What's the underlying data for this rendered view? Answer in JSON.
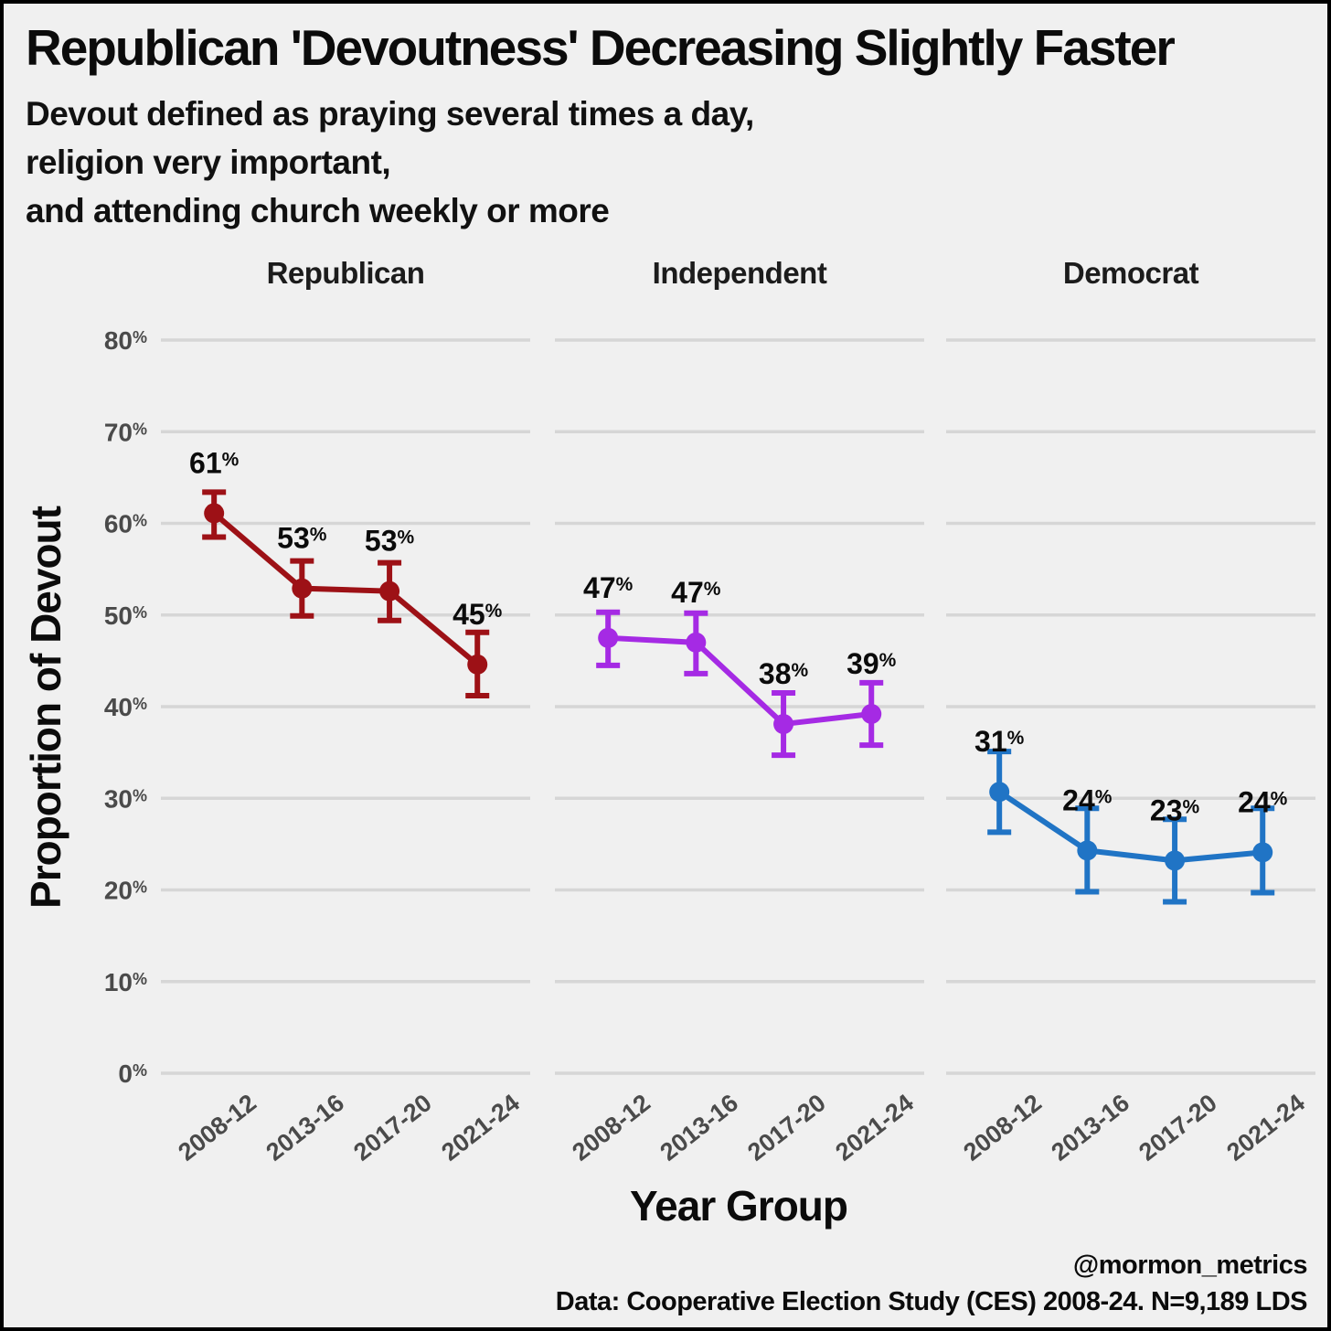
{
  "footer": {
    "handle": "@mormon_metrics",
    "source": "Data: Cooperative Election Study (CES) 2008-24. N=9,189 LDS"
  },
  "colors": {
    "background": "#F0F0F0",
    "border": "#000000",
    "gridline": "#D6D6D6",
    "tick_text": "#4A4A4A",
    "facet_text": "#1C1C1C",
    "label_text": "#0B0B0B",
    "republican": "#9D1116",
    "independent": "#A52AE4",
    "democrat": "#2074C5"
  },
  "chart_data": {
    "type": "line",
    "title": "Republican 'Devoutness' Decreasing Slightly Faster",
    "subtitle": "Devout defined as praying several times a day,\nreligion very important,\nand attending church weekly or more",
    "xlabel": "Year Group",
    "ylabel": "Proportion of Devout",
    "categories": [
      "2008-12",
      "2013-16",
      "2017-20",
      "2021-24"
    ],
    "ylim": [
      0,
      80
    ],
    "ytick_values": [
      0,
      10,
      20,
      30,
      40,
      50,
      60,
      70,
      80
    ],
    "ytick_labels": [
      "0%",
      "10%",
      "20%",
      "30%",
      "40%",
      "50%",
      "60%",
      "70%",
      "80%"
    ],
    "grid": "horizontal",
    "legend": "none",
    "facets": [
      {
        "label": "Republican",
        "color": "#9D1116",
        "values": [
          61.1,
          52.9,
          52.6,
          44.6
        ],
        "point_labels": [
          "61%",
          "53%",
          "53%",
          "45%"
        ],
        "error_low": [
          58.5,
          49.9,
          49.4,
          41.2
        ],
        "error_high": [
          63.4,
          55.9,
          55.7,
          48.1
        ]
      },
      {
        "label": "Independent",
        "color": "#A52AE4",
        "values": [
          47.5,
          47.0,
          38.1,
          39.2
        ],
        "point_labels": [
          "47%",
          "47%",
          "38%",
          "39%"
        ],
        "error_low": [
          44.5,
          43.6,
          34.7,
          35.8
        ],
        "error_high": [
          50.3,
          50.2,
          41.5,
          42.6
        ]
      },
      {
        "label": "Democrat",
        "color": "#2074C5",
        "values": [
          30.7,
          24.3,
          23.2,
          24.1
        ],
        "point_labels": [
          "31%",
          "24%",
          "23%",
          "24%"
        ],
        "error_low": [
          26.3,
          19.8,
          18.7,
          19.7
        ],
        "error_high": [
          35.1,
          28.9,
          27.7,
          28.9
        ]
      }
    ]
  }
}
